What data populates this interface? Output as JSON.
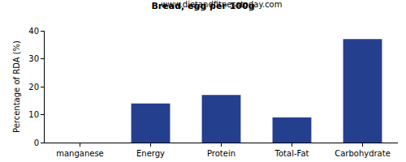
{
  "chart_data": {
    "type": "bar",
    "title": "Bread, egg per 100g",
    "subtitle": "www.dietandfitnesstoday.com",
    "y_label": "Percentage of RDA (%)",
    "categories": [
      "manganese",
      "Energy",
      "Protein",
      "Total-Fat",
      "Carbohydrate"
    ],
    "values": [
      0,
      14,
      17,
      9,
      37
    ],
    "color": "#253f8f",
    "ylim": [
      0,
      40
    ],
    "yticks": [
      0,
      10,
      20,
      30,
      40
    ],
    "grid": false
  }
}
